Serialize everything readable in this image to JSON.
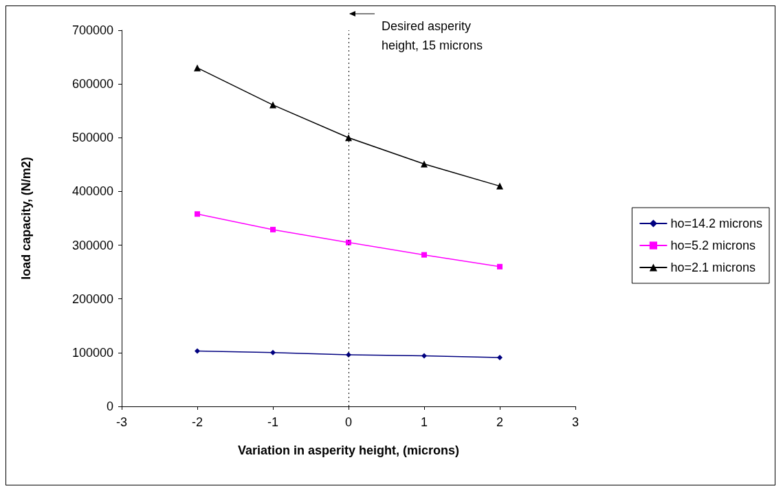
{
  "chart_data": {
    "type": "line",
    "xlabel": "Variation in asperity height, (microns)",
    "ylabel": "load capacity, (N/m2)",
    "x": [
      -2,
      -1,
      0,
      1,
      2
    ],
    "series": [
      {
        "name": "ho=14.2 microns",
        "color": "#000080",
        "marker": "diamond",
        "values": [
          103000,
          100000,
          96000,
          94000,
          91000
        ]
      },
      {
        "name": "ho=5.2 microns",
        "color": "#ff00ff",
        "marker": "square",
        "values": [
          358000,
          329000,
          305000,
          282000,
          260000
        ]
      },
      {
        "name": "ho=2.1 microns",
        "color": "#000000",
        "marker": "triangle",
        "values": [
          630000,
          561000,
          500000,
          451000,
          410000
        ]
      }
    ],
    "xlim": [
      -3,
      3
    ],
    "xticks": [
      -3,
      -2,
      -1,
      0,
      1,
      2,
      3
    ],
    "ylim": [
      0,
      700000
    ],
    "yticks": [
      0,
      100000,
      200000,
      300000,
      400000,
      500000,
      600000,
      700000
    ],
    "grid": false,
    "legend": "right",
    "ref_lines": [
      {
        "axis": "x",
        "value": 0,
        "label": "Desired asperity height, 15 microns",
        "color": "#000000",
        "line_style": "dotted"
      }
    ]
  }
}
